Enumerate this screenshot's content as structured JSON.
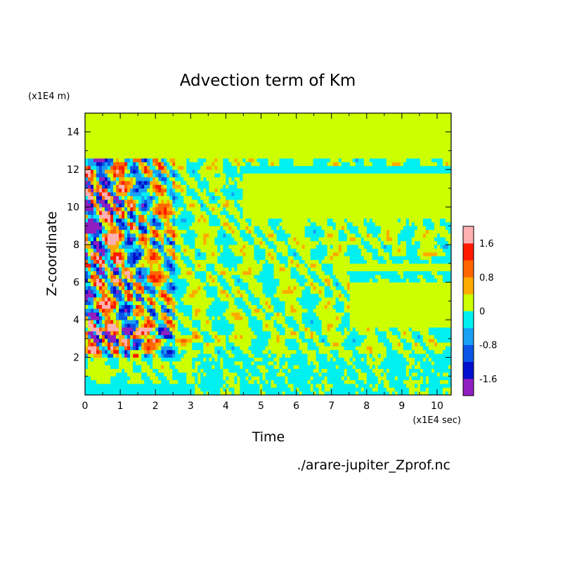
{
  "chart_data": {
    "type": "heatmap",
    "title": "Advection term of Km",
    "xlabel": "Time",
    "ylabel": "Z-coordinate",
    "x_unit": "(x1E4 sec)",
    "y_unit": "(x1E4 m)",
    "xlim": [
      0,
      10.4
    ],
    "ylim": [
      0,
      15
    ],
    "x_ticks": [
      "0",
      "1",
      "2",
      "3",
      "4",
      "5",
      "6",
      "7",
      "8",
      "9",
      "10"
    ],
    "y_ticks": [
      "2",
      "4",
      "6",
      "8",
      "10",
      "12",
      "14"
    ],
    "source_file": "./arare-jupiter_Zprof.nc",
    "colorbar": {
      "levels": [
        -2.0,
        -1.6,
        -1.2,
        -0.8,
        -0.4,
        0,
        0.4,
        0.8,
        1.2,
        1.6,
        2.0
      ],
      "colors": [
        "#8f1fbf",
        "#0010cc",
        "#0a55e6",
        "#18a0f5",
        "#00f0f0",
        "#ccff00",
        "#ffaa00",
        "#ff6600",
        "#ff1a00",
        "#ffb0b0"
      ],
      "tick_labels": [
        "1.6",
        "0.8",
        "0",
        "-0.8",
        "-1.6"
      ],
      "tick_values": [
        1.6,
        0.8,
        0,
        -0.8,
        -1.6
      ]
    },
    "regions": [
      {
        "description": "dominant near-zero field",
        "level": "0 to 0.4"
      },
      {
        "description": "cyan layer near Z 12",
        "x_range": [
          4.5,
          10.4
        ],
        "z_range": [
          11.9,
          12.2
        ],
        "level": "-0.4 to 0"
      },
      {
        "description": "cyan band near bottom",
        "x_range": [
          0,
          10.4
        ],
        "z_range": [
          0,
          2.5
        ],
        "level": "-0.4 to 0"
      },
      {
        "description": "strong fluctuations",
        "x_range": [
          0.1,
          2.5
        ],
        "z_range": [
          2,
          12.5
        ],
        "level": "-2.0 to 2.0"
      }
    ]
  }
}
